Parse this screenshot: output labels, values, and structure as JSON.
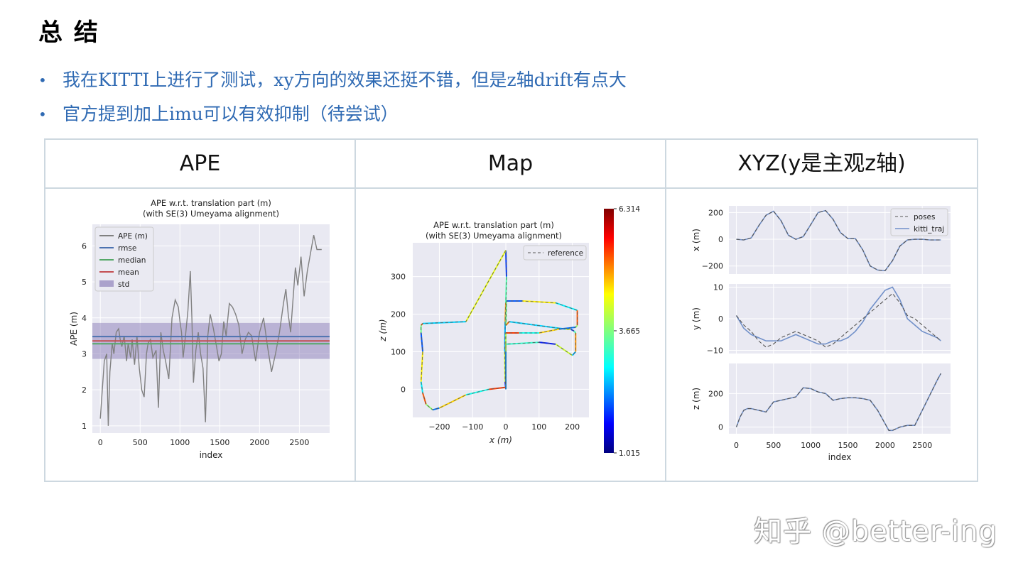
{
  "slide": {
    "title": "总 结",
    "bullets": [
      "我在KITTI上进行了测试，xy方向的效果还挺不错，但是z轴drift有点大",
      "官方提到加上imu可以有效抑制（待尝试）"
    ],
    "columns": [
      "APE",
      "Map",
      "XYZ(y是主观z轴)"
    ],
    "watermark": "知乎 @better-ing"
  },
  "colors": {
    "bullet_text": "#2f6ab3",
    "plot_bg": "#e9e9f2",
    "rmse": "#4c72b0",
    "median": "#55a868",
    "mean": "#c44e52",
    "std": "#8172b2",
    "ape": "#808080"
  },
  "chart_data": [
    {
      "id": "ape",
      "type": "line",
      "title": "APE w.r.t. translation part (m)",
      "subtitle": "(with SE(3) Umeyama alignment)",
      "xlabel": "index",
      "ylabel": "APE (m)",
      "xlim": [
        -100,
        2880
      ],
      "ylim": [
        0.8,
        6.6
      ],
      "xticks": [
        0,
        500,
        1000,
        1500,
        2000,
        2500
      ],
      "yticks": [
        1,
        2,
        3,
        4,
        5,
        6
      ],
      "grid": true,
      "legend_position": "top-left",
      "legend": [
        "APE (m)",
        "rmse",
        "median",
        "mean",
        "std"
      ],
      "stats": {
        "rmse": 3.48,
        "median": 3.28,
        "mean": 3.36,
        "std_band": [
          2.86,
          3.86
        ]
      },
      "series": [
        {
          "name": "APE (m)",
          "x": [
            0,
            50,
            80,
            100,
            120,
            150,
            170,
            200,
            230,
            250,
            270,
            300,
            330,
            350,
            380,
            400,
            430,
            460,
            490,
            520,
            550,
            580,
            600,
            630,
            660,
            700,
            730,
            760,
            790,
            820,
            860,
            900,
            940,
            980,
            1000,
            1020,
            1040,
            1070,
            1100,
            1130,
            1150,
            1170,
            1200,
            1230,
            1260,
            1290,
            1320,
            1350,
            1380,
            1420,
            1460,
            1490,
            1520,
            1550,
            1580,
            1620,
            1660,
            1700,
            1740,
            1780,
            1820,
            1860,
            1900,
            1950,
            2000,
            2050,
            2100,
            2150,
            2200,
            2250,
            2300,
            2330,
            2360,
            2390,
            2420,
            2450,
            2480,
            2520,
            2560,
            2600,
            2640,
            2680,
            2720,
            2750,
            2780
          ],
          "y": [
            1.2,
            2.8,
            3.0,
            1.0,
            2.5,
            3.3,
            3.0,
            3.6,
            3.7,
            3.4,
            3.2,
            3.5,
            2.8,
            3.3,
            2.9,
            3.4,
            2.7,
            3.5,
            2.6,
            2.0,
            1.8,
            3.0,
            3.3,
            3.4,
            2.9,
            3.1,
            1.5,
            3.6,
            3.1,
            2.8,
            2.3,
            4.0,
            4.5,
            4.3,
            3.9,
            3.6,
            2.9,
            3.5,
            4.2,
            5.3,
            4.0,
            2.2,
            3.1,
            3.6,
            3.0,
            2.6,
            1.1,
            3.5,
            4.1,
            3.7,
            3.2,
            2.8,
            3.0,
            3.9,
            3.5,
            4.4,
            4.3,
            4.1,
            3.8,
            3.0,
            3.4,
            3.6,
            3.5,
            2.8,
            3.6,
            4.0,
            3.2,
            2.5,
            3.0,
            3.6,
            4.4,
            4.8,
            4.1,
            3.6,
            4.5,
            5.4,
            4.9,
            5.7,
            4.6,
            5.3,
            5.8,
            6.3,
            5.9,
            5.9,
            5.9
          ]
        }
      ]
    },
    {
      "id": "map",
      "type": "line",
      "title": "APE w.r.t. translation part (m)",
      "subtitle": "(with SE(3) Umeyama alignment)",
      "xlabel": "x (m)",
      "ylabel": "z (m)",
      "xlim": [
        -280,
        250
      ],
      "ylim": [
        -75,
        390
      ],
      "xticks": [
        -200,
        -100,
        0,
        100,
        200
      ],
      "yticks": [
        0,
        100,
        200,
        300
      ],
      "grid": true,
      "legend_position": "top-right",
      "legend": [
        "reference"
      ],
      "colorbar": {
        "min": 1.015,
        "mid": 3.665,
        "max": 6.314,
        "ticks": [
          "6.314",
          "3.665",
          "1.015"
        ]
      },
      "series": [
        {
          "name": "reference",
          "x": [
            0,
            -2,
            -3,
            -2,
            0,
            2,
            0,
            -120,
            -250,
            -255,
            -255,
            -250,
            -255,
            -250,
            -240,
            -220,
            -200,
            -120,
            -50,
            0,
            0,
            0,
            0,
            100,
            150,
            200,
            210,
            210,
            205,
            195,
            180,
            10,
            0,
            2,
            50,
            150,
            215,
            215,
            210,
            160,
            100,
            40,
            0,
            0,
            0
          ],
          "y": [
            0,
            20,
            100,
            180,
            230,
            300,
            370,
            180,
            175,
            170,
            150,
            100,
            20,
            -10,
            -40,
            -55,
            -50,
            -15,
            0,
            5,
            60,
            110,
            120,
            125,
            120,
            90,
            100,
            150,
            155,
            160,
            160,
            180,
            170,
            235,
            235,
            230,
            210,
            170,
            165,
            160,
            150,
            150,
            150,
            100,
            0
          ]
        }
      ]
    },
    {
      "id": "xyz",
      "type": "line",
      "xlabel": "index",
      "xlim": [
        -100,
        2880
      ],
      "xticks": [
        0,
        500,
        1000,
        1500,
        2000,
        2500
      ],
      "grid": true,
      "legend_position": "top-right",
      "legend": [
        "poses",
        "kitti_traj"
      ],
      "subplots": [
        {
          "ylabel": "x (m)",
          "ylim": [
            -260,
            250
          ],
          "yticks": [
            200,
            0,
            -200
          ],
          "x": [
            0,
            100,
            200,
            300,
            400,
            500,
            600,
            700,
            800,
            900,
            1000,
            1100,
            1200,
            1300,
            1400,
            1500,
            1600,
            1700,
            1800,
            1900,
            2000,
            2100,
            2200,
            2300,
            2400,
            2500,
            2600,
            2700,
            2750
          ],
          "poses": [
            0,
            -5,
            10,
            100,
            180,
            210,
            140,
            30,
            0,
            20,
            110,
            200,
            215,
            150,
            50,
            5,
            5,
            -80,
            -200,
            -230,
            -235,
            -160,
            -50,
            -5,
            0,
            0,
            -5,
            -5,
            -5
          ],
          "kitti_traj": [
            0,
            -5,
            10,
            100,
            180,
            210,
            140,
            30,
            0,
            20,
            110,
            200,
            215,
            150,
            50,
            5,
            5,
            -80,
            -200,
            -230,
            -235,
            -160,
            -50,
            -5,
            0,
            0,
            -5,
            -5,
            -5
          ]
        },
        {
          "ylabel": "y (m)",
          "ylim": [
            -11,
            11
          ],
          "yticks": [
            10,
            0,
            -10
          ],
          "x": [
            0,
            100,
            200,
            300,
            400,
            500,
            600,
            700,
            800,
            900,
            1000,
            1100,
            1200,
            1300,
            1400,
            1500,
            1600,
            1700,
            1800,
            1900,
            2000,
            2100,
            2200,
            2300,
            2400,
            2500,
            2600,
            2700,
            2750
          ],
          "poses": [
            1,
            -2,
            -4,
            -7,
            -9,
            -8,
            -6,
            -5,
            -4,
            -5,
            -6,
            -7,
            -9,
            -8,
            -6,
            -4,
            -2,
            0,
            2,
            4,
            6,
            8,
            5,
            1,
            0,
            -2,
            -4,
            -6,
            -7
          ],
          "kitti_traj": [
            1,
            -3,
            -5,
            -6,
            -7,
            -7,
            -7,
            -6,
            -5,
            -6,
            -7,
            -8,
            -8,
            -7,
            -7,
            -6,
            -4,
            -1,
            3,
            6,
            9,
            10,
            6,
            0,
            -2,
            -4,
            -5,
            -6,
            -7
          ]
        },
        {
          "ylabel": "z (m)",
          "ylim": [
            -40,
            380
          ],
          "yticks": [
            200,
            0
          ],
          "x": [
            0,
            50,
            100,
            150,
            200,
            300,
            400,
            500,
            600,
            700,
            800,
            900,
            1000,
            1100,
            1200,
            1300,
            1400,
            1500,
            1600,
            1700,
            1800,
            1900,
            2000,
            2050,
            2100,
            2200,
            2300,
            2400,
            2500,
            2600,
            2700,
            2750
          ],
          "poses": [
            0,
            60,
            100,
            110,
            110,
            100,
            90,
            150,
            160,
            170,
            180,
            235,
            230,
            210,
            200,
            160,
            170,
            175,
            175,
            170,
            160,
            100,
            20,
            -20,
            -20,
            0,
            10,
            10,
            100,
            190,
            280,
            320
          ],
          "kitti_traj": [
            0,
            60,
            100,
            110,
            110,
            100,
            90,
            150,
            160,
            170,
            180,
            235,
            230,
            210,
            200,
            160,
            170,
            175,
            175,
            170,
            160,
            100,
            20,
            -20,
            -20,
            0,
            10,
            10,
            100,
            190,
            280,
            320
          ]
        }
      ]
    }
  ]
}
